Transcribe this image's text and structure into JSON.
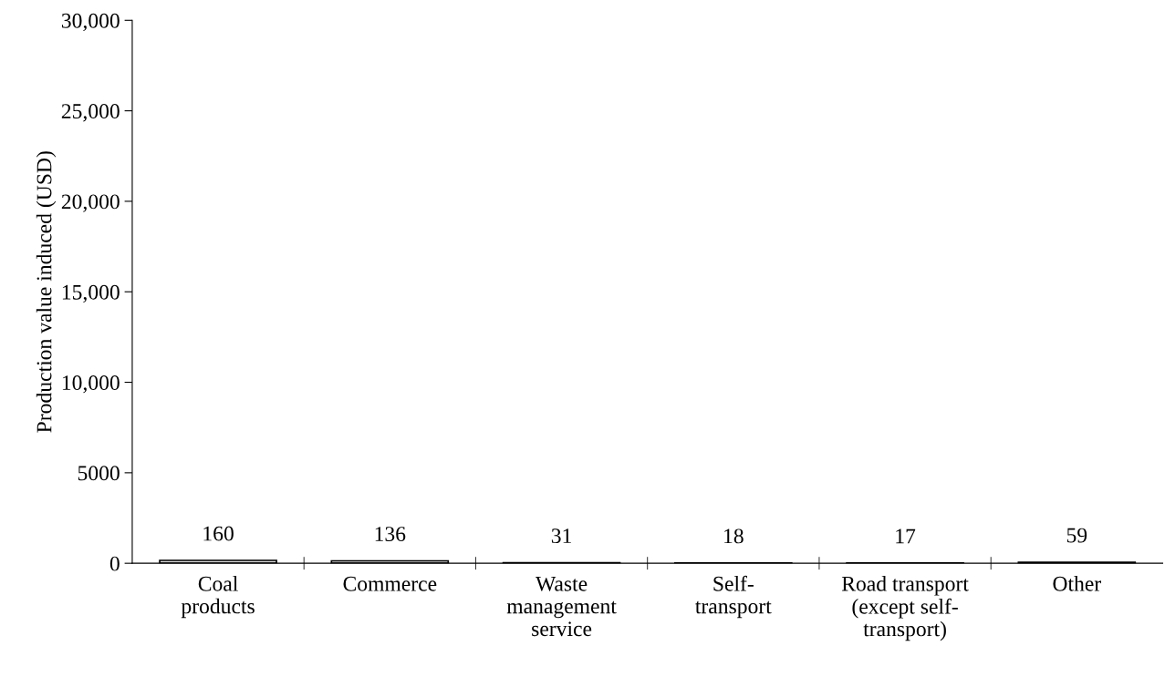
{
  "chart_data": {
    "type": "bar",
    "ylabel": "Production value induced (USD)",
    "categories": [
      "Coal\nproducts",
      "Commerce",
      "Waste\nmanagement\nservice",
      "Self-\ntransport",
      "Road transport\n(except self-\ntransport)",
      "Other"
    ],
    "values": [
      160,
      136,
      31,
      18,
      17,
      59
    ],
    "color": "#d9d9d9",
    "data_labels": true,
    "ylim": [
      0,
      30000
    ],
    "yticks": [
      0,
      5000,
      {
        "value": 10000,
        "label": "10,000"
      },
      {
        "value": 15000,
        "label": "15,000"
      },
      {
        "value": 20000,
        "label": "20,000"
      },
      {
        "value": 25000,
        "label": "25,000"
      },
      {
        "value": 30000,
        "label": "30,000"
      }
    ],
    "grid": false,
    "legend": false
  }
}
